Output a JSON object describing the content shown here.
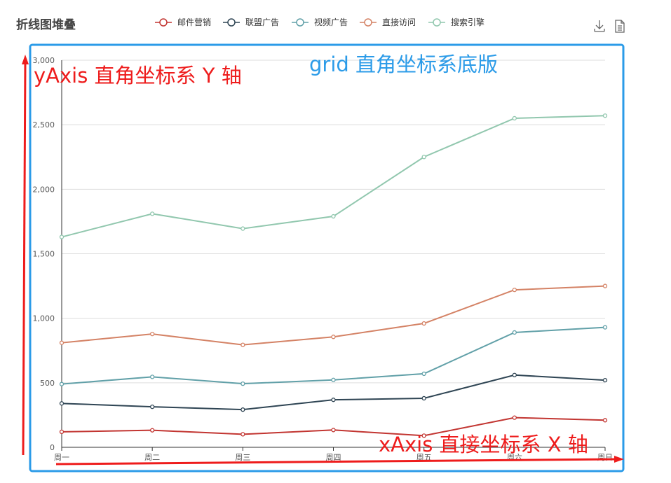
{
  "chart_data": {
    "type": "line",
    "title": "折线图堆叠",
    "categories": [
      "周一",
      "周二",
      "周三",
      "周四",
      "周五",
      "周六",
      "周日"
    ],
    "ylim": [
      0,
      3000
    ],
    "yticks": [
      0,
      500,
      1000,
      1500,
      2000,
      2500,
      3000
    ],
    "ytick_labels": [
      "0",
      "500",
      "1,000",
      "1,500",
      "2,000",
      "2,500",
      "3,000"
    ],
    "stacked": true,
    "grid": true,
    "legend_position": "top",
    "series": [
      {
        "name": "邮件营销",
        "color": "#c23531",
        "values": [
          120,
          132,
          101,
          134,
          90,
          230,
          210
        ]
      },
      {
        "name": "联盟广告",
        "color": "#2f4554",
        "values": [
          220,
          182,
          191,
          234,
          290,
          330,
          310
        ]
      },
      {
        "name": "视频广告",
        "color": "#61a0a8",
        "values": [
          150,
          232,
          201,
          154,
          190,
          330,
          410
        ]
      },
      {
        "name": "直接访问",
        "color": "#d48265",
        "values": [
          320,
          332,
          301,
          334,
          390,
          330,
          320
        ]
      },
      {
        "name": "搜索引擎",
        "color": "#91c7ae",
        "values": [
          820,
          932,
          901,
          934,
          1290,
          1330,
          1320
        ]
      }
    ]
  },
  "annotations": {
    "grid_label": "grid 直角坐标系底版",
    "yaxis_label": "yAxis 直角坐标系 Y 轴",
    "xaxis_label": "xAxis  直接坐标系 X 轴",
    "grid_box_color": "#2b9be8",
    "arrow_color": "#ee1c1c"
  },
  "toolbox": {
    "download_icon": "download-icon",
    "data_view_icon": "document-icon"
  }
}
